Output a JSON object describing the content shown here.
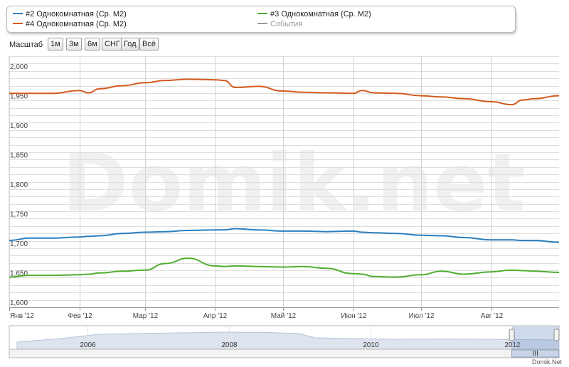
{
  "legend": {
    "items": [
      {
        "label": "#2 Однокомнатная (Ср. М2)",
        "color": "#2a7fbf"
      },
      {
        "label": "#4 Однокомнатная (Ср. М2)",
        "color": "#d45a1e"
      },
      {
        "label": "#3 Однокомнатная (Ср. М2)",
        "color": "#4fae30"
      },
      {
        "label": "События",
        "color": "#999999"
      }
    ]
  },
  "toolbar": {
    "scale_label": "Масштаб",
    "buttons": [
      "1м",
      "3м",
      "6м",
      "СНГ",
      "Год",
      "Всё"
    ]
  },
  "watermark": "Domik.net",
  "credit": "Domik.Net",
  "chart_data": {
    "type": "line",
    "x": [
      "2012-01-01",
      "2012-01-10",
      "2012-01-20",
      "2012-02-01",
      "2012-02-05",
      "2012-02-10",
      "2012-02-20",
      "2012-03-01",
      "2012-03-10",
      "2012-03-20",
      "2012-04-01",
      "2012-04-05",
      "2012-04-10",
      "2012-04-20",
      "2012-05-01",
      "2012-05-10",
      "2012-05-20",
      "2012-06-01",
      "2012-06-05",
      "2012-06-10",
      "2012-06-20",
      "2012-07-01",
      "2012-07-10",
      "2012-07-20",
      "2012-08-01",
      "2012-08-10",
      "2012-08-15",
      "2012-08-20",
      "2012-08-31"
    ],
    "series": [
      {
        "name": "#4 Однокомнатная (Ср. М2)",
        "color": "#d45a1e",
        "values": [
          1962,
          1962,
          1962,
          1967,
          1963,
          1970,
          1975,
          1980,
          1984,
          1986,
          1985,
          1984,
          1972,
          1974,
          1966,
          1964,
          1963,
          1962,
          1967,
          1963,
          1962,
          1958,
          1956,
          1953,
          1948,
          1943,
          1951,
          1953,
          1958
        ]
      },
      {
        "name": "#2 Однокомнатная (Ср. М2)",
        "color": "#2a7fbf",
        "values": [
          1713,
          1717,
          1717,
          1719,
          1720,
          1721,
          1725,
          1727,
          1728,
          1730,
          1731,
          1731,
          1733,
          1731,
          1729,
          1729,
          1728,
          1729,
          1727,
          1726,
          1725,
          1722,
          1721,
          1718,
          1714,
          1714,
          1713,
          1713,
          1710
        ]
      },
      {
        "name": "#3 Однокомнатная (Ср. М2)",
        "color": "#4fae30",
        "values": [
          1651,
          1654,
          1654,
          1655,
          1656,
          1658,
          1661,
          1663,
          1674,
          1683,
          1670,
          1669,
          1670,
          1669,
          1668,
          1669,
          1666,
          1657,
          1656,
          1652,
          1651,
          1655,
          1661,
          1656,
          1660,
          1663,
          1662,
          1661,
          1659
        ]
      }
    ],
    "ylim": [
      1600,
      2025
    ],
    "y_ticks": [
      "1,600",
      "1,650",
      "1,700",
      "1,750",
      "1,800",
      "1,850",
      "1,900",
      "1,950",
      "2,000"
    ],
    "y_tick_values": [
      1600,
      1650,
      1700,
      1750,
      1800,
      1850,
      1900,
      1950,
      2000
    ],
    "x_tick_labels": [
      "Янв '12",
      "Фев '12",
      "Мар '12",
      "Апр '12",
      "Май '12",
      "Июн '12",
      "Июл '12",
      "Авг '12"
    ],
    "x_tick_dates": [
      "2012-01-01",
      "2012-02-01",
      "2012-03-01",
      "2012-04-01",
      "2012-05-01",
      "2012-06-01",
      "2012-07-01",
      "2012-08-01"
    ],
    "xlim": [
      "2012-01-01",
      "2012-08-31"
    ],
    "grid": true,
    "navigator": {
      "labels": [
        "2006",
        "2008",
        "2010",
        "2012"
      ],
      "label_dates": [
        "2006-01-01",
        "2008-01-01",
        "2010-01-01",
        "2012-01-01"
      ],
      "range": [
        "2005-01-01",
        "2012-09-01"
      ],
      "selected": [
        "2012-01-01",
        "2012-08-31"
      ]
    }
  }
}
